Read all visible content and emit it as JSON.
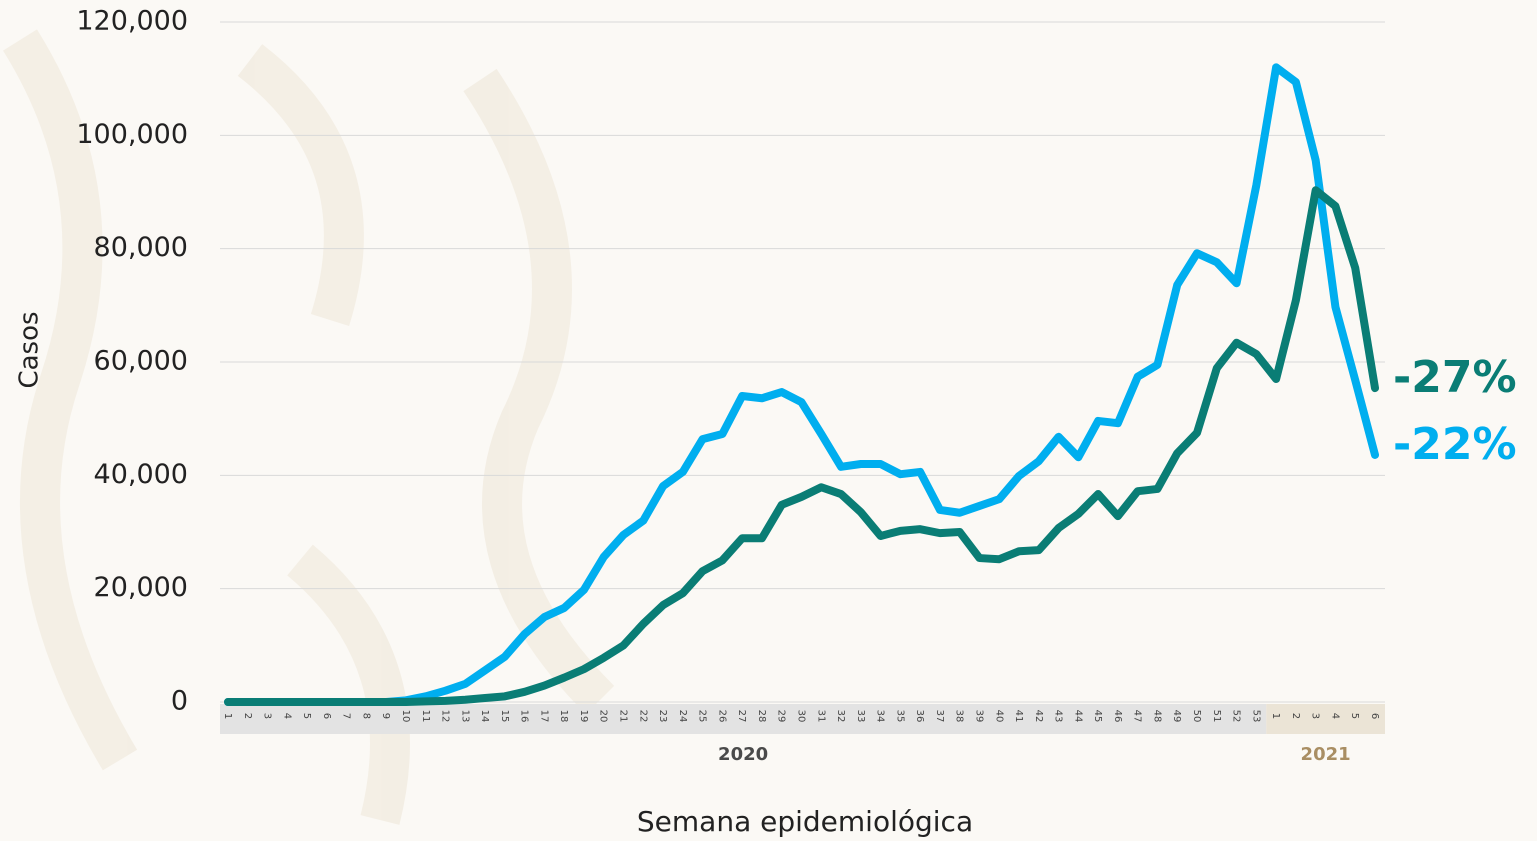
{
  "chart_data": {
    "type": "line",
    "y_label": "Casos",
    "x_label": "Semana epidemiológica",
    "categories": [
      "1",
      "2",
      "3",
      "4",
      "5",
      "6",
      "7",
      "8",
      "9",
      "10",
      "11",
      "12",
      "13",
      "14",
      "15",
      "16",
      "17",
      "18",
      "19",
      "20",
      "21",
      "22",
      "23",
      "24",
      "25",
      "26",
      "27",
      "28",
      "29",
      "30",
      "31",
      "32",
      "33",
      "34",
      "35",
      "36",
      "37",
      "38",
      "39",
      "40",
      "41",
      "42",
      "43",
      "44",
      "45",
      "46",
      "47",
      "48",
      "49",
      "50",
      "51",
      "52",
      "53",
      "1",
      "2",
      "3",
      "4",
      "5",
      "6"
    ],
    "groups": [
      {
        "label": "2020",
        "color": "#4a4a4a",
        "band": "#e3e3e3"
      },
      {
        "label": "2021",
        "color": "#a98e63",
        "band": "#ebe4d6"
      }
    ],
    "series": [
      {
        "color": "#00aeef",
        "values": [
          0,
          0,
          0,
          0,
          0,
          0,
          0,
          0,
          0,
          300,
          1000,
          2000,
          3200,
          5600,
          8000,
          12000,
          15000,
          16600,
          19800,
          25600,
          29500,
          32000,
          38100,
          40600,
          46400,
          47300,
          54000,
          53600,
          54700,
          52900,
          47300,
          41500,
          42000,
          42000,
          40200,
          40600,
          33900,
          33400,
          34600,
          35800,
          39900,
          42500,
          46800,
          43200,
          49600,
          49200,
          57400,
          59500,
          73600,
          79200,
          77600,
          73900,
          91200,
          112000,
          109400,
          95600,
          69700,
          56800,
          43600
        ]
      },
      {
        "color": "#0a7d75",
        "values": [
          0,
          0,
          0,
          0,
          0,
          0,
          0,
          0,
          0,
          0,
          100,
          200,
          400,
          700,
          1000,
          1800,
          2900,
          4300,
          5800,
          7800,
          10000,
          13800,
          17100,
          19200,
          23100,
          25000,
          28900,
          28900,
          34800,
          36200,
          37900,
          36700,
          33500,
          29300,
          30200,
          30500,
          29800,
          30000,
          25400,
          25200,
          26600,
          26800,
          30700,
          33200,
          36700,
          32800,
          37200,
          37600,
          43900,
          47500,
          58900,
          63400,
          61400,
          57000,
          70900,
          90300,
          87500,
          76600,
          55400
        ]
      }
    ],
    "annotations": [
      {
        "text": "-27%",
        "series": 1
      },
      {
        "text": "-22%",
        "series": 0
      }
    ],
    "ylim": [
      0,
      120000
    ],
    "yticks": [
      0,
      {
        "value": 20000,
        "label": "20,000"
      },
      {
        "value": 40000,
        "label": "40,000"
      },
      {
        "value": 60000,
        "label": "60,000"
      },
      {
        "value": 80000,
        "label": "80,000"
      },
      {
        "value": 100000,
        "label": "100,000"
      },
      {
        "value": 120000,
        "label": "120,000"
      }
    ],
    "grid": true
  }
}
